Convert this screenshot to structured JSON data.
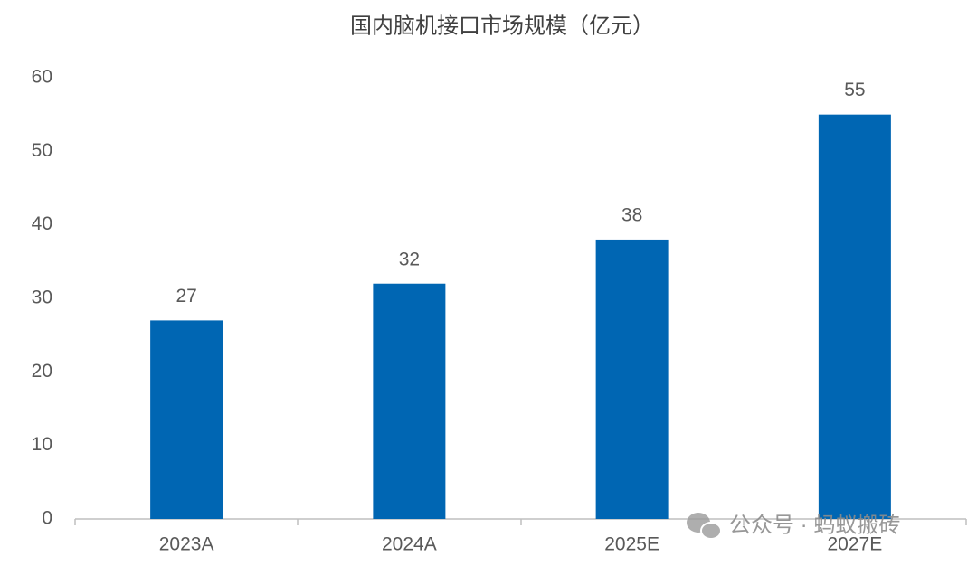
{
  "chart_data": {
    "type": "bar",
    "title": "国内脑机接口市场规模（亿元）",
    "categories": [
      "2023A",
      "2024A",
      "2025E",
      "2027E"
    ],
    "values": [
      27,
      32,
      38,
      55
    ],
    "color": "#0066b3",
    "ylim": [
      0,
      60
    ],
    "yticks": [
      0,
      10,
      20,
      30,
      40,
      50,
      60
    ],
    "grid": false,
    "watermark": "公众号 · 蚂蚁搬砖"
  }
}
